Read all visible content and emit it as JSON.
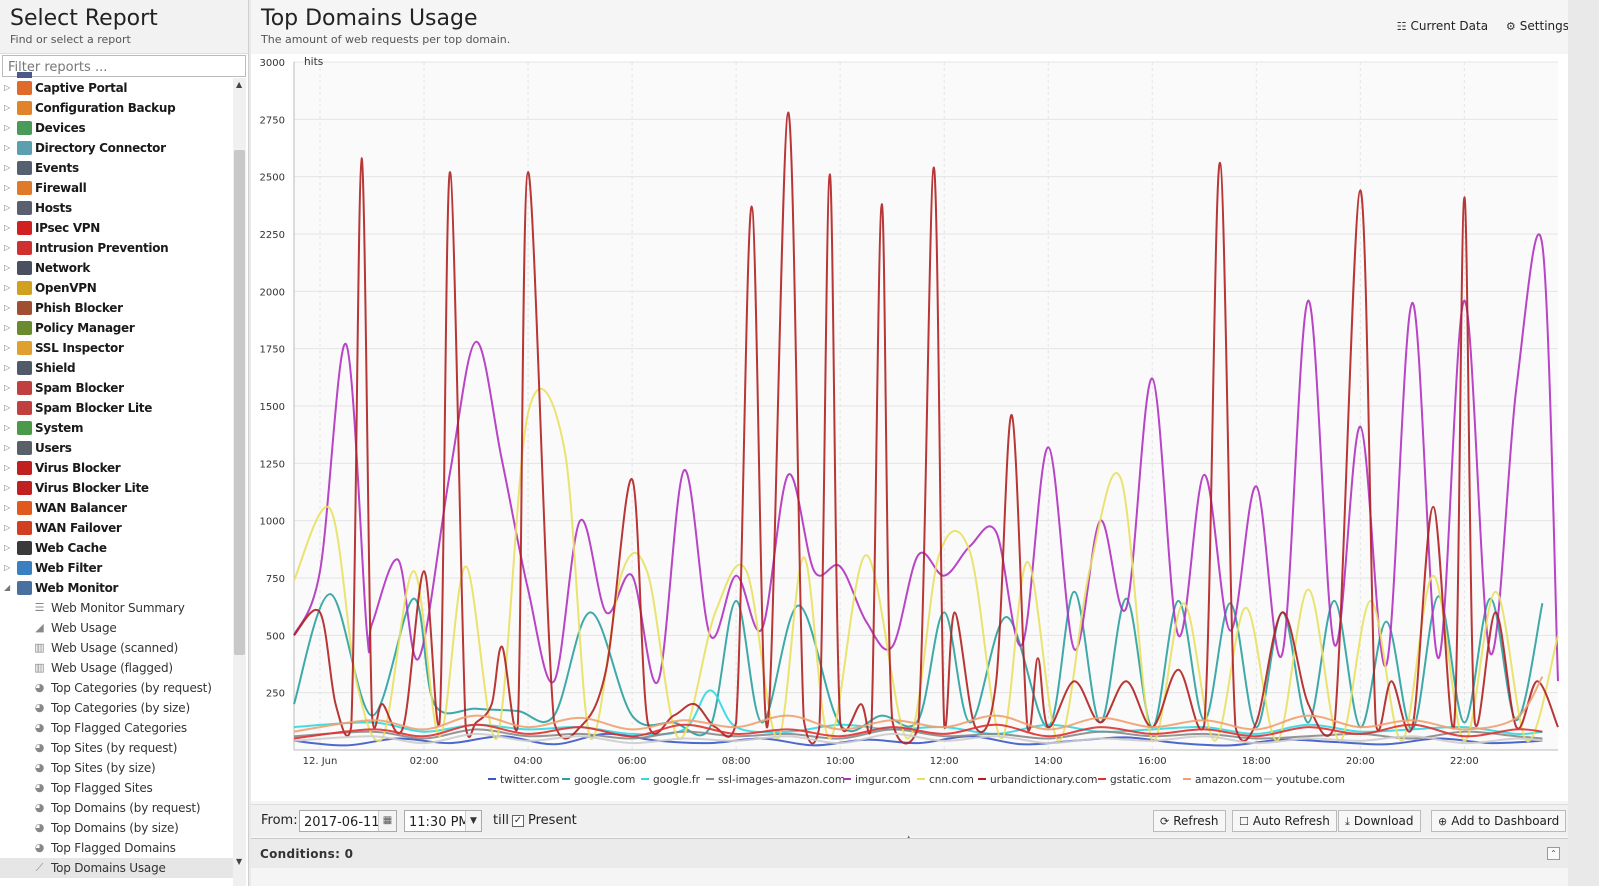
{
  "sidebar": {
    "title": "Select Report",
    "subtitle": "Find or select a report",
    "filter_placeholder": "Filter reports ...",
    "apps": [
      {
        "label": "Captive Portal",
        "icon": "captive-portal-icon",
        "color": "#e06a2a"
      },
      {
        "label": "Configuration Backup",
        "icon": "configuration-backup-icon",
        "color": "#e0832a"
      },
      {
        "label": "Devices",
        "icon": "devices-icon",
        "color": "#4a9a5a"
      },
      {
        "label": "Directory Connector",
        "icon": "directory-connector-icon",
        "color": "#5aa0b0"
      },
      {
        "label": "Events",
        "icon": "events-icon",
        "color": "#556070"
      },
      {
        "label": "Firewall",
        "icon": "firewall-icon",
        "color": "#e07a2a"
      },
      {
        "label": "Hosts",
        "icon": "hosts-icon",
        "color": "#5a6070"
      },
      {
        "label": "IPsec VPN",
        "icon": "ipsec-vpn-icon",
        "color": "#d02020"
      },
      {
        "label": "Intrusion Prevention",
        "icon": "intrusion-prevention-icon",
        "color": "#d03030"
      },
      {
        "label": "Network",
        "icon": "network-icon",
        "color": "#4a5060"
      },
      {
        "label": "OpenVPN",
        "icon": "openvpn-icon",
        "color": "#d0a020"
      },
      {
        "label": "Phish Blocker",
        "icon": "phish-blocker-icon",
        "color": "#a05030"
      },
      {
        "label": "Policy Manager",
        "icon": "policy-manager-icon",
        "color": "#6a8a30"
      },
      {
        "label": "SSL Inspector",
        "icon": "ssl-inspector-icon",
        "color": "#e0a030"
      },
      {
        "label": "Shield",
        "icon": "shield-icon",
        "color": "#505a68"
      },
      {
        "label": "Spam Blocker",
        "icon": "spam-blocker-icon",
        "color": "#c04040"
      },
      {
        "label": "Spam Blocker Lite",
        "icon": "spam-blocker-lite-icon",
        "color": "#c04040"
      },
      {
        "label": "System",
        "icon": "system-icon",
        "color": "#4a9a4a"
      },
      {
        "label": "Users",
        "icon": "users-icon",
        "color": "#5a6068"
      },
      {
        "label": "Virus Blocker",
        "icon": "virus-blocker-icon",
        "color": "#c02020"
      },
      {
        "label": "Virus Blocker Lite",
        "icon": "virus-blocker-lite-icon",
        "color": "#c02020"
      },
      {
        "label": "WAN Balancer",
        "icon": "wan-balancer-icon",
        "color": "#e05a20"
      },
      {
        "label": "WAN Failover",
        "icon": "wan-failover-icon",
        "color": "#d04020"
      },
      {
        "label": "Web Cache",
        "icon": "web-cache-icon",
        "color": "#3a3a3a"
      },
      {
        "label": "Web Filter",
        "icon": "web-filter-icon",
        "color": "#3a80c0"
      },
      {
        "label": "Web Monitor",
        "icon": "web-monitor-icon",
        "color": "#4a70a0"
      }
    ],
    "web_monitor_reports": [
      {
        "label": "Web Monitor Summary",
        "icon": "list-icon",
        "glyph": "☰"
      },
      {
        "label": "Web Usage",
        "icon": "area-chart-icon",
        "glyph": "◢"
      },
      {
        "label": "Web Usage (scanned)",
        "icon": "bar-chart-icon",
        "glyph": "▥"
      },
      {
        "label": "Web Usage (flagged)",
        "icon": "bar-chart-icon",
        "glyph": "▥"
      },
      {
        "label": "Top Categories (by request)",
        "icon": "pie-chart-icon",
        "glyph": "◕"
      },
      {
        "label": "Top Categories (by size)",
        "icon": "pie-chart-icon",
        "glyph": "◕"
      },
      {
        "label": "Top Flagged Categories",
        "icon": "pie-chart-icon",
        "glyph": "◕"
      },
      {
        "label": "Top Sites (by request)",
        "icon": "pie-chart-icon",
        "glyph": "◕"
      },
      {
        "label": "Top Sites (by size)",
        "icon": "pie-chart-icon",
        "glyph": "◕"
      },
      {
        "label": "Top Flagged Sites",
        "icon": "pie-chart-icon",
        "glyph": "◕"
      },
      {
        "label": "Top Domains (by request)",
        "icon": "pie-chart-icon",
        "glyph": "◕"
      },
      {
        "label": "Top Domains (by size)",
        "icon": "pie-chart-icon",
        "glyph": "◕"
      },
      {
        "label": "Top Flagged Domains",
        "icon": "pie-chart-icon",
        "glyph": "◕"
      },
      {
        "label": "Top Domains Usage",
        "icon": "line-chart-icon",
        "glyph": "⟋"
      }
    ]
  },
  "report": {
    "title": "Top Domains Usage",
    "subtitle": "The amount of web requests per top domain."
  },
  "header_tools": {
    "current_data": "Current Data",
    "settings": "Settings"
  },
  "toolbar": {
    "from_label": "From:",
    "date_value": "2017-06-11",
    "time_value": "11:30 PM",
    "till_label": "till",
    "present_label": "Present",
    "present_checked": true,
    "refresh": "Refresh",
    "auto_refresh": "Auto Refresh",
    "download": "Download",
    "add_to_dashboard": "Add to Dashboard"
  },
  "conditions": {
    "label": "Conditions: 0"
  },
  "chart_data": {
    "type": "line",
    "ylabel": "hits",
    "ylim": [
      0,
      3000
    ],
    "yticks": [
      250,
      500,
      750,
      1000,
      1250,
      1500,
      1750,
      2000,
      2250,
      2500,
      2750,
      3000
    ],
    "xlim": [
      -0.5,
      23.8
    ],
    "xticks": [
      {
        "x": 0,
        "label": "12. Jun"
      },
      {
        "x": 2,
        "label": "02:00"
      },
      {
        "x": 4,
        "label": "04:00"
      },
      {
        "x": 6,
        "label": "06:00"
      },
      {
        "x": 8,
        "label": "08:00"
      },
      {
        "x": 10,
        "label": "10:00"
      },
      {
        "x": 12,
        "label": "12:00"
      },
      {
        "x": 14,
        "label": "14:00"
      },
      {
        "x": 16,
        "label": "16:00"
      },
      {
        "x": 18,
        "label": "18:00"
      },
      {
        "x": 20,
        "label": "20:00"
      },
      {
        "x": 22,
        "label": "22:00"
      }
    ],
    "grid": true,
    "legend": "bottom",
    "series": [
      {
        "name": "twitter.com",
        "color": "#3a56c8",
        "x": [
          -0.5,
          0.5,
          1.5,
          2.5,
          3.5,
          4.5,
          5.5,
          6.5,
          7.5,
          8.5,
          9.5,
          10.5,
          11.5,
          12.5,
          13.5,
          14.5,
          15.5,
          16.5,
          17.5,
          18.5,
          19.5,
          20.5,
          21.5,
          22.5,
          23.5
        ],
        "values": [
          40,
          20,
          50,
          30,
          60,
          25,
          70,
          40,
          30,
          50,
          20,
          45,
          30,
          60,
          25,
          40,
          55,
          30,
          20,
          45,
          35,
          25,
          50,
          30,
          40
        ]
      },
      {
        "name": "google.com",
        "color": "#2aa0a0",
        "x": [
          -0.5,
          0.2,
          1,
          1.8,
          2.2,
          3,
          3.8,
          4.5,
          5.2,
          6,
          6.8,
          7.5,
          8,
          8.5,
          9.2,
          10,
          10.8,
          11.5,
          12,
          12.5,
          13.2,
          14,
          14.5,
          15,
          15.5,
          16,
          16.5,
          17,
          17.5,
          18,
          18.5,
          19,
          19.5,
          20,
          20.5,
          21,
          21.5,
          22,
          22.5,
          23,
          23.5
        ],
        "values": [
          200,
          680,
          150,
          660,
          200,
          180,
          170,
          150,
          600,
          150,
          120,
          100,
          650,
          120,
          630,
          110,
          150,
          130,
          600,
          120,
          580,
          100,
          690,
          120,
          660,
          100,
          650,
          130,
          640,
          100,
          600,
          120,
          650,
          100,
          560,
          90,
          670,
          120,
          660,
          130,
          640
        ]
      },
      {
        "name": "google.fr",
        "color": "#30d8e0",
        "x": [
          -0.5,
          1,
          2,
          3,
          4,
          5,
          6,
          7,
          7.5,
          8,
          9,
          10,
          11,
          12,
          13,
          14,
          15,
          16,
          17,
          18,
          19,
          20,
          21,
          22,
          23,
          23.5
        ],
        "values": [
          100,
          120,
          80,
          110,
          90,
          100,
          70,
          90,
          260,
          100,
          80,
          110,
          90,
          100,
          70,
          110,
          80,
          90,
          100,
          70,
          110,
          80,
          90,
          100,
          70,
          80
        ]
      },
      {
        "name": "ssl-images-amazon.com",
        "color": "#888888",
        "x": [
          -0.5,
          1,
          2,
          3,
          4,
          5,
          6,
          7,
          8,
          9,
          10,
          11,
          12,
          13,
          14,
          15,
          16,
          17,
          18,
          19,
          20,
          21,
          22,
          23,
          23.5
        ],
        "values": [
          60,
          80,
          50,
          90,
          60,
          70,
          50,
          80,
          60,
          70,
          50,
          90,
          60,
          70,
          50,
          80,
          60,
          70,
          50,
          60,
          70,
          50,
          80,
          60,
          50
        ]
      },
      {
        "name": "imgur.com",
        "color": "#b030c0",
        "x": [
          -0.5,
          0,
          0.5,
          0.9,
          1,
          1.5,
          1.9,
          2.5,
          3,
          3.5,
          4,
          4.5,
          5,
          5.5,
          6,
          6.5,
          7,
          7.5,
          8,
          8.5,
          9,
          9.5,
          10,
          10.5,
          11,
          11.5,
          12,
          12.5,
          13,
          13.5,
          14,
          14.5,
          15,
          15.5,
          16,
          16.5,
          17,
          17.5,
          18,
          18.5,
          19,
          19.5,
          20,
          20.5,
          21,
          21.5,
          22,
          22.5,
          23,
          23.5,
          23.8
        ],
        "values": [
          500,
          780,
          1770,
          520,
          550,
          830,
          400,
          1210,
          1780,
          1260,
          700,
          300,
          1000,
          600,
          760,
          300,
          1220,
          500,
          760,
          530,
          1200,
          780,
          800,
          560,
          450,
          850,
          760,
          890,
          950,
          460,
          1320,
          440,
          1000,
          620,
          1620,
          500,
          1200,
          520,
          1150,
          420,
          1960,
          460,
          1410,
          370,
          1950,
          400,
          1960,
          420,
          1580,
          2200,
          300
        ]
      },
      {
        "name": "cnn.com",
        "color": "#e8e060",
        "x": [
          -0.5,
          0.2,
          0.7,
          1.2,
          1.8,
          2.3,
          2.8,
          3.4,
          4,
          4.7,
          5.2,
          5.8,
          6.3,
          6.9,
          7.6,
          8.2,
          8.8,
          9.3,
          9.8,
          10.5,
          11.3,
          11.9,
          12.5,
          13.1,
          13.6,
          14.2,
          14.8,
          15.4,
          16,
          16.6,
          17.2,
          17.8,
          18.4,
          19,
          19.6,
          20.2,
          20.8,
          21.4,
          22,
          22.6,
          23.2,
          23.8
        ],
        "values": [
          740,
          1050,
          300,
          50,
          780,
          60,
          800,
          50,
          1470,
          1310,
          50,
          770,
          770,
          50,
          600,
          780,
          50,
          840,
          50,
          850,
          50,
          850,
          860,
          50,
          820,
          40,
          790,
          1180,
          40,
          640,
          40,
          620,
          40,
          700,
          40,
          650,
          40,
          760,
          40,
          690,
          40,
          500
        ]
      },
      {
        "name": "urbandictionary.com",
        "color": "#b02020",
        "x": [
          -0.5,
          0,
          0.3,
          0.6,
          0.8,
          1,
          1.2,
          1.6,
          2,
          2.3,
          2.5,
          2.8,
          3,
          3.3,
          3.5,
          3.8,
          4,
          4.5,
          5,
          5.5,
          6,
          6.3,
          6.8,
          7.2,
          7.6,
          8,
          8.3,
          8.6,
          9,
          9.3,
          9.6,
          9.8,
          10,
          10.4,
          10.6,
          10.8,
          11,
          11.5,
          11.8,
          12,
          12.2,
          12.6,
          13,
          13.3,
          13.6,
          13.8,
          14,
          14.5,
          15,
          15.5,
          16,
          16.5,
          17,
          17.3,
          17.6,
          18,
          18.5,
          19,
          19.5,
          20,
          20.3,
          20.6,
          21,
          21.4,
          21.8,
          22,
          22.2,
          22.6,
          23,
          23.4,
          23.8
        ],
        "values": [
          500,
          600,
          200,
          100,
          2580,
          150,
          200,
          100,
          780,
          120,
          2520,
          100,
          120,
          200,
          450,
          100,
          2520,
          120,
          100,
          350,
          1180,
          120,
          150,
          200,
          100,
          120,
          2370,
          100,
          2780,
          130,
          100,
          2510,
          120,
          200,
          100,
          2380,
          130,
          100,
          2540,
          110,
          600,
          100,
          300,
          1460,
          100,
          400,
          100,
          300,
          120,
          300,
          100,
          350,
          110,
          2560,
          100,
          120,
          600,
          200,
          100,
          2440,
          110,
          300,
          100,
          1060,
          100,
          2410,
          120,
          600,
          100,
          300,
          100
        ]
      },
      {
        "name": "gstatic.com",
        "color": "#e03030",
        "x": [
          -0.5,
          1,
          2,
          3,
          4,
          5,
          6,
          7,
          8,
          9,
          10,
          11,
          12,
          13,
          14,
          15,
          16,
          17,
          18,
          19,
          20,
          21,
          22,
          23,
          23.5
        ],
        "values": [
          50,
          90,
          60,
          110,
          70,
          100,
          60,
          110,
          70,
          90,
          60,
          100,
          70,
          110,
          60,
          100,
          70,
          90,
          60,
          100,
          70,
          110,
          60,
          90,
          80
        ]
      },
      {
        "name": "amazon.com",
        "color": "#f0a070",
        "x": [
          -0.5,
          1,
          2,
          3,
          4,
          5,
          6,
          7,
          8,
          9,
          10,
          11,
          12,
          13,
          14,
          15,
          16,
          17,
          18,
          19,
          20,
          21,
          22,
          23,
          23.5
        ],
        "values": [
          80,
          130,
          90,
          150,
          100,
          140,
          90,
          130,
          100,
          150,
          90,
          130,
          100,
          150,
          90,
          140,
          100,
          130,
          90,
          150,
          100,
          130,
          90,
          140,
          320
        ]
      },
      {
        "name": "youtube.com",
        "color": "#cccccc",
        "x": [
          -0.5,
          1,
          2,
          3,
          4,
          5,
          6,
          7,
          8,
          9,
          10,
          11,
          12,
          13,
          14,
          15,
          16,
          17,
          18,
          19,
          20,
          21,
          22,
          23,
          23.5
        ],
        "values": [
          40,
          60,
          30,
          70,
          40,
          60,
          30,
          50,
          40,
          60,
          30,
          70,
          40,
          60,
          30,
          50,
          40,
          60,
          30,
          50,
          40,
          60,
          30,
          50,
          40
        ]
      }
    ]
  }
}
